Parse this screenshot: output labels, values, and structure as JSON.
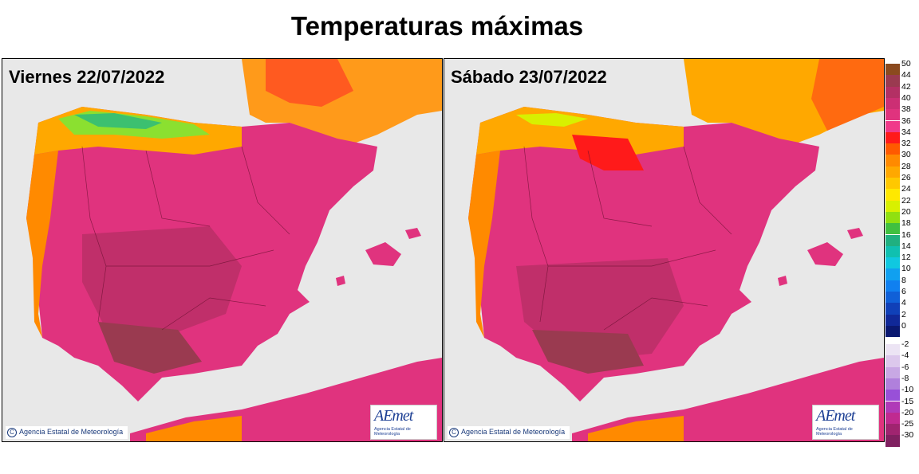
{
  "title": "Temperaturas máximas",
  "panels": [
    {
      "day_label": "Viernes 22/07/2022",
      "credit": "Agencia Estatal de Meteorología"
    },
    {
      "day_label": "Sábado 23/07/2022",
      "credit": "Agencia Estatal de Meteorología"
    }
  ],
  "logo": {
    "brand": "AEmet",
    "subtitle": "Agencia Estatal de Meteorología"
  },
  "legend": {
    "warm": [
      {
        "label": "50",
        "color": "#8b4a1e"
      },
      {
        "label": "44",
        "color": "#9a3a50"
      },
      {
        "label": "42",
        "color": "#b33064"
      },
      {
        "label": "40",
        "color": "#cc2f74"
      },
      {
        "label": "38",
        "color": "#e0337e"
      },
      {
        "label": "36",
        "color": "#f03a8a"
      },
      {
        "label": "34",
        "color": "#ff1a1a"
      },
      {
        "label": "32",
        "color": "#ff5a00"
      },
      {
        "label": "30",
        "color": "#ff8a00"
      },
      {
        "label": "28",
        "color": "#ffa800"
      },
      {
        "label": "26",
        "color": "#ffc800"
      },
      {
        "label": "24",
        "color": "#ffe800"
      },
      {
        "label": "22",
        "color": "#d8f000"
      },
      {
        "label": "20",
        "color": "#90e010"
      },
      {
        "label": "18",
        "color": "#40c040"
      },
      {
        "label": "16",
        "color": "#20b080"
      },
      {
        "label": "14",
        "color": "#10c0b0"
      },
      {
        "label": "12",
        "color": "#10c8e0"
      },
      {
        "label": "10",
        "color": "#10a0f0"
      },
      {
        "label": "8",
        "color": "#1080f0"
      },
      {
        "label": "6",
        "color": "#1060d8"
      },
      {
        "label": "4",
        "color": "#1040b8"
      },
      {
        "label": "2",
        "color": "#102898"
      },
      {
        "label": "0",
        "color": "#0a1870"
      }
    ],
    "cold": [
      {
        "label": "-2",
        "color": "#ece4f4"
      },
      {
        "label": "-4",
        "color": "#dcc8ec"
      },
      {
        "label": "-6",
        "color": "#c8a8e4"
      },
      {
        "label": "-8",
        "color": "#b080dc"
      },
      {
        "label": "-10",
        "color": "#9850d8"
      },
      {
        "label": "-15",
        "color": "#b03ab8"
      },
      {
        "label": "-20",
        "color": "#c02a90"
      },
      {
        "label": "-25",
        "color": "#a02470"
      },
      {
        "label": "-30",
        "color": "#802060"
      }
    ]
  }
}
